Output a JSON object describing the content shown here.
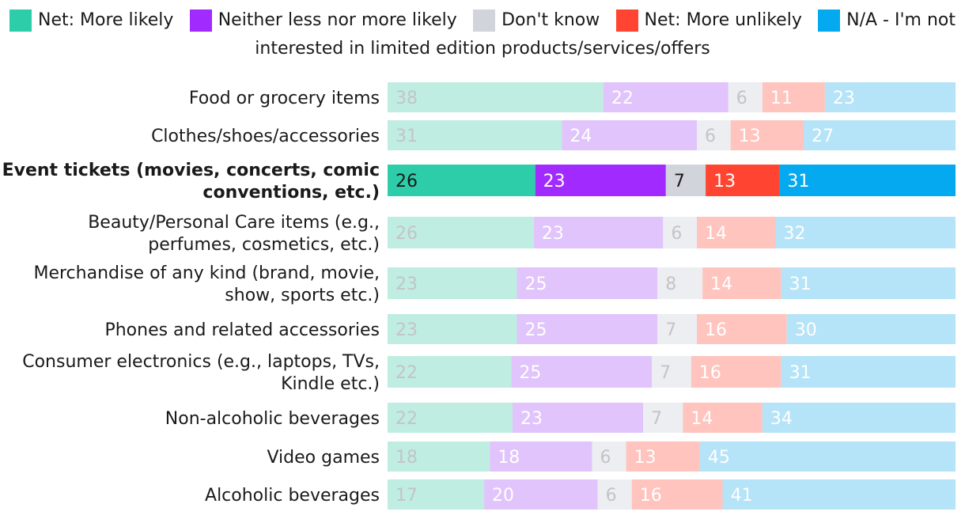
{
  "chart_data": {
    "type": "bar",
    "orientation": "horizontal",
    "stacked": true,
    "legend": {
      "placement": "top",
      "entries": [
        {
          "key": "net_more_likely",
          "name": "Net: More likely",
          "color": "#2ECDAA"
        },
        {
          "key": "neither",
          "name": "Neither less nor more likely",
          "color": "#A12BFF"
        },
        {
          "key": "dont_know",
          "name": "Don't know",
          "color": "#D1D4DB"
        },
        {
          "key": "net_more_unlikely",
          "name": "Net: More unlikely",
          "color": "#FF4531"
        },
        {
          "key": "na",
          "name": "N/A - I'm not",
          "continuation": "interested in limited edition products/services/offers",
          "color": "#05A9F0"
        }
      ]
    },
    "highlight_category": "Event tickets (movies, concerts, comic conventions, etc.)",
    "xlim": [
      0,
      100
    ],
    "categories": [
      {
        "label": [
          "Food or grocery items"
        ],
        "values": [
          38,
          22,
          6,
          11,
          23
        ]
      },
      {
        "label": [
          "Clothes/shoes/accessories"
        ],
        "values": [
          31,
          24,
          6,
          13,
          27
        ]
      },
      {
        "label": [
          "Event tickets (movies, concerts, comic",
          "conventions, etc.)"
        ],
        "values": [
          26,
          23,
          7,
          13,
          31
        ],
        "highlight": true
      },
      {
        "label": [
          "Beauty/Personal Care items (e.g.,",
          "perfumes, cosmetics, etc.)"
        ],
        "values": [
          26,
          23,
          6,
          14,
          32
        ]
      },
      {
        "label": [
          "Merchandise of any kind (brand, movie,",
          "show, sports etc.)"
        ],
        "values": [
          23,
          25,
          8,
          14,
          31
        ]
      },
      {
        "label": [
          "Phones and related accessories"
        ],
        "values": [
          23,
          25,
          7,
          16,
          30
        ]
      },
      {
        "label": [
          "Consumer electronics (e.g., laptops, TVs,",
          "Kindle etc.)"
        ],
        "values": [
          22,
          25,
          7,
          16,
          31
        ]
      },
      {
        "label": [
          "Non-alcoholic beverages"
        ],
        "values": [
          22,
          23,
          7,
          14,
          34
        ]
      },
      {
        "label": [
          "Video games"
        ],
        "values": [
          18,
          18,
          6,
          13,
          45
        ]
      },
      {
        "label": [
          "Alcoholic beverages"
        ],
        "values": [
          17,
          20,
          6,
          16,
          41
        ]
      }
    ],
    "muted_colors": [
      "#BFEDE2",
      "#E0C4FB",
      "#EDEEF1",
      "#FFC4BE",
      "#B5E3F8"
    ],
    "label_colors": {
      "highlight": "#1a1a1a",
      "muted": "#c4c4c4",
      "muted_on_dark": "#ffffff"
    }
  }
}
